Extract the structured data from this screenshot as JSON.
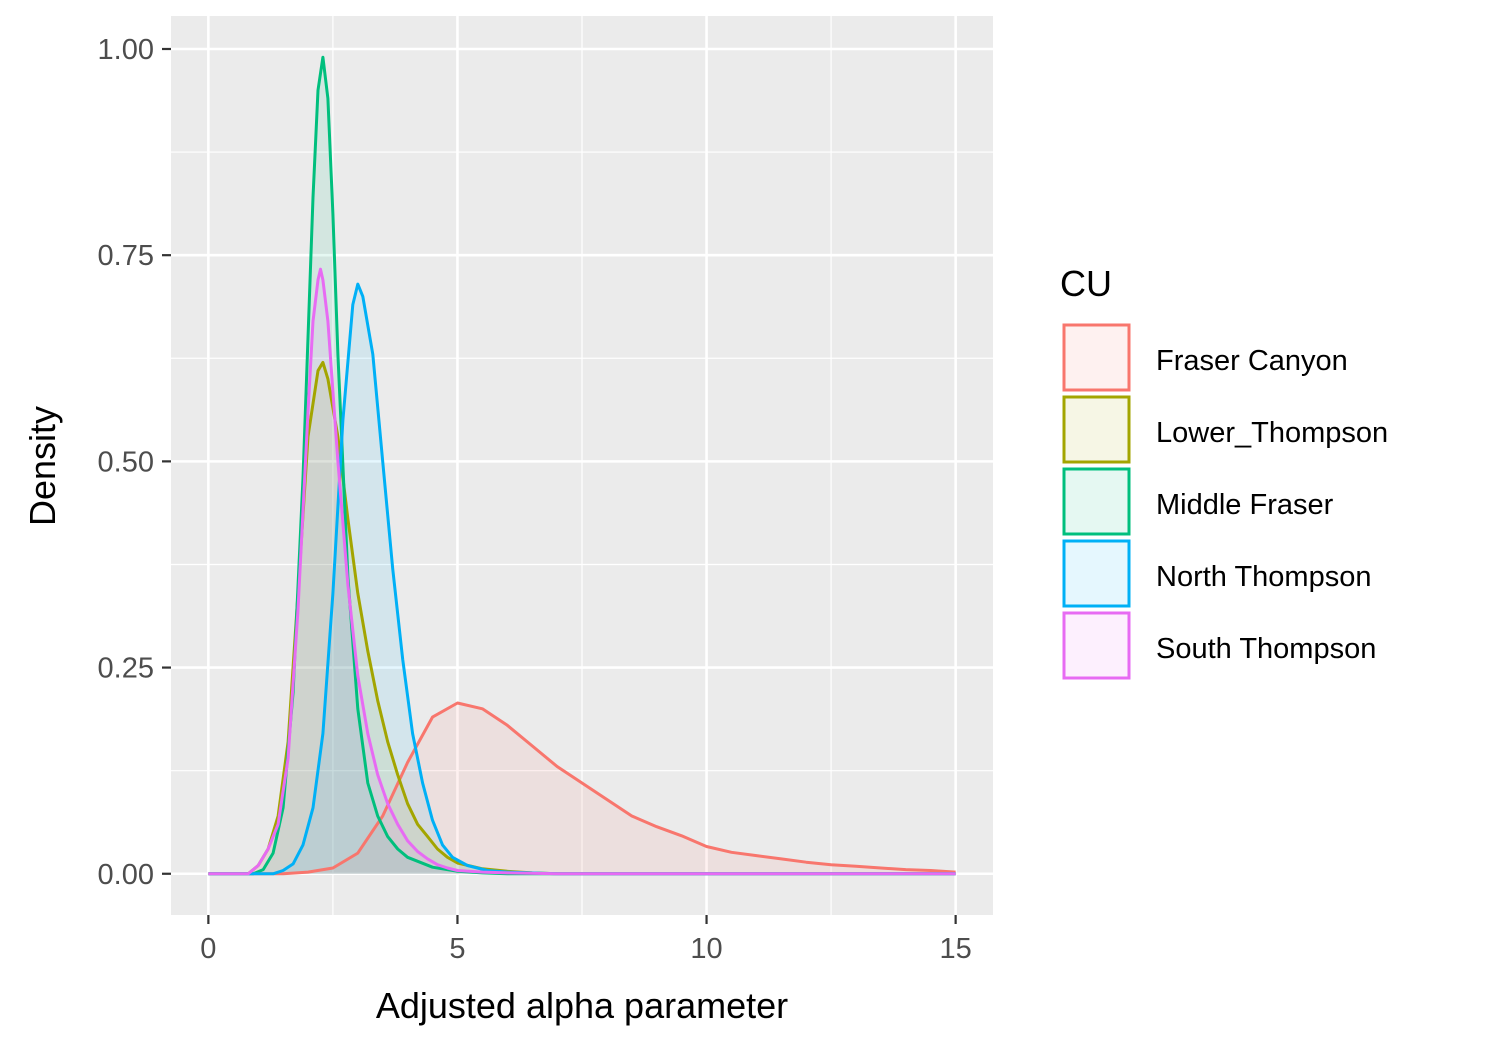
{
  "chart_data": {
    "type": "area",
    "title": "",
    "xlabel": "Adjusted alpha parameter",
    "ylabel": "Density",
    "xlim": [
      -0.75,
      15.75
    ],
    "ylim": [
      -0.05,
      1.04
    ],
    "x_ticks": [
      0,
      5,
      10,
      15
    ],
    "x_tick_labels": [
      "0",
      "5",
      "10",
      "15"
    ],
    "y_ticks": [
      0,
      0.25,
      0.5,
      0.75,
      1.0
    ],
    "y_tick_labels": [
      "0.00",
      "0.25",
      "0.50",
      "0.75",
      "1.00"
    ],
    "grid": true,
    "legend": {
      "title": "CU",
      "position": "right"
    },
    "series": [
      {
        "name": "Fraser Canyon",
        "color": "#F8766D",
        "fill": "#F8766D",
        "points": [
          [
            0,
            0
          ],
          [
            1.5,
            0
          ],
          [
            2,
            0.002
          ],
          [
            2.5,
            0.007
          ],
          [
            3,
            0.025
          ],
          [
            3.5,
            0.07
          ],
          [
            4,
            0.135
          ],
          [
            4.5,
            0.19
          ],
          [
            5,
            0.207
          ],
          [
            5.5,
            0.2
          ],
          [
            6,
            0.18
          ],
          [
            6.5,
            0.155
          ],
          [
            7,
            0.13
          ],
          [
            7.5,
            0.11
          ],
          [
            8,
            0.09
          ],
          [
            8.5,
            0.07
          ],
          [
            9,
            0.057
          ],
          [
            9.5,
            0.046
          ],
          [
            10,
            0.033
          ],
          [
            10.5,
            0.026
          ],
          [
            11,
            0.022
          ],
          [
            11.5,
            0.018
          ],
          [
            12,
            0.014
          ],
          [
            12.5,
            0.011
          ],
          [
            13,
            0.009
          ],
          [
            13.5,
            0.007
          ],
          [
            14,
            0.005
          ],
          [
            14.5,
            0.004
          ],
          [
            15,
            0.002
          ]
        ]
      },
      {
        "name": "Lower_Thompson",
        "color": "#A3A500",
        "fill": "#A3A500",
        "points": [
          [
            0,
            0
          ],
          [
            0.8,
            0
          ],
          [
            1.0,
            0.01
          ],
          [
            1.2,
            0.03
          ],
          [
            1.4,
            0.07
          ],
          [
            1.6,
            0.16
          ],
          [
            1.8,
            0.34
          ],
          [
            2.0,
            0.53
          ],
          [
            2.2,
            0.61
          ],
          [
            2.3,
            0.62
          ],
          [
            2.4,
            0.6
          ],
          [
            2.6,
            0.53
          ],
          [
            2.8,
            0.43
          ],
          [
            3.0,
            0.34
          ],
          [
            3.2,
            0.27
          ],
          [
            3.4,
            0.21
          ],
          [
            3.6,
            0.16
          ],
          [
            3.8,
            0.12
          ],
          [
            4.0,
            0.085
          ],
          [
            4.2,
            0.06
          ],
          [
            4.4,
            0.045
          ],
          [
            4.6,
            0.03
          ],
          [
            4.8,
            0.02
          ],
          [
            5.0,
            0.013
          ],
          [
            5.5,
            0.006
          ],
          [
            6.0,
            0.003
          ],
          [
            6.5,
            0.001
          ],
          [
            7.0,
            0
          ],
          [
            15,
            0
          ]
        ]
      },
      {
        "name": "Middle Fraser",
        "color": "#00BF7D",
        "fill": "#00BF7D",
        "points": [
          [
            0,
            0
          ],
          [
            0.9,
            0
          ],
          [
            1.1,
            0.005
          ],
          [
            1.3,
            0.025
          ],
          [
            1.5,
            0.08
          ],
          [
            1.7,
            0.22
          ],
          [
            1.9,
            0.48
          ],
          [
            2.1,
            0.82
          ],
          [
            2.2,
            0.95
          ],
          [
            2.3,
            0.99
          ],
          [
            2.4,
            0.94
          ],
          [
            2.5,
            0.8
          ],
          [
            2.6,
            0.63
          ],
          [
            2.8,
            0.36
          ],
          [
            3.0,
            0.2
          ],
          [
            3.2,
            0.11
          ],
          [
            3.4,
            0.07
          ],
          [
            3.6,
            0.045
          ],
          [
            3.8,
            0.03
          ],
          [
            4.0,
            0.02
          ],
          [
            4.5,
            0.008
          ],
          [
            5.0,
            0.003
          ],
          [
            5.5,
            0.001
          ],
          [
            6.0,
            0
          ],
          [
            15,
            0
          ]
        ]
      },
      {
        "name": "North Thompson",
        "color": "#00B0F6",
        "fill": "#00B0F6",
        "points": [
          [
            0,
            0
          ],
          [
            1.3,
            0
          ],
          [
            1.5,
            0.004
          ],
          [
            1.7,
            0.012
          ],
          [
            1.9,
            0.035
          ],
          [
            2.1,
            0.08
          ],
          [
            2.3,
            0.17
          ],
          [
            2.5,
            0.34
          ],
          [
            2.7,
            0.55
          ],
          [
            2.9,
            0.69
          ],
          [
            3.0,
            0.715
          ],
          [
            3.1,
            0.7
          ],
          [
            3.3,
            0.63
          ],
          [
            3.5,
            0.5
          ],
          [
            3.7,
            0.37
          ],
          [
            3.9,
            0.26
          ],
          [
            4.1,
            0.17
          ],
          [
            4.3,
            0.11
          ],
          [
            4.5,
            0.065
          ],
          [
            4.7,
            0.035
          ],
          [
            4.9,
            0.02
          ],
          [
            5.2,
            0.01
          ],
          [
            5.6,
            0.004
          ],
          [
            6.0,
            0.002
          ],
          [
            7.0,
            0
          ],
          [
            15,
            0
          ]
        ]
      },
      {
        "name": "South Thompson",
        "color": "#E76BF3",
        "fill": "#E76BF3",
        "points": [
          [
            0,
            0
          ],
          [
            0.8,
            0
          ],
          [
            1.0,
            0.01
          ],
          [
            1.2,
            0.03
          ],
          [
            1.4,
            0.06
          ],
          [
            1.6,
            0.14
          ],
          [
            1.8,
            0.32
          ],
          [
            2.0,
            0.56
          ],
          [
            2.1,
            0.67
          ],
          [
            2.2,
            0.72
          ],
          [
            2.25,
            0.733
          ],
          [
            2.3,
            0.72
          ],
          [
            2.4,
            0.67
          ],
          [
            2.6,
            0.5
          ],
          [
            2.8,
            0.35
          ],
          [
            3.0,
            0.24
          ],
          [
            3.2,
            0.17
          ],
          [
            3.4,
            0.12
          ],
          [
            3.6,
            0.085
          ],
          [
            3.8,
            0.06
          ],
          [
            4.0,
            0.04
          ],
          [
            4.2,
            0.027
          ],
          [
            4.4,
            0.018
          ],
          [
            4.6,
            0.011
          ],
          [
            4.8,
            0.007
          ],
          [
            5.0,
            0.004
          ],
          [
            5.5,
            0.002
          ],
          [
            6.0,
            0.001
          ],
          [
            7.0,
            0
          ],
          [
            15,
            0
          ]
        ]
      }
    ]
  }
}
